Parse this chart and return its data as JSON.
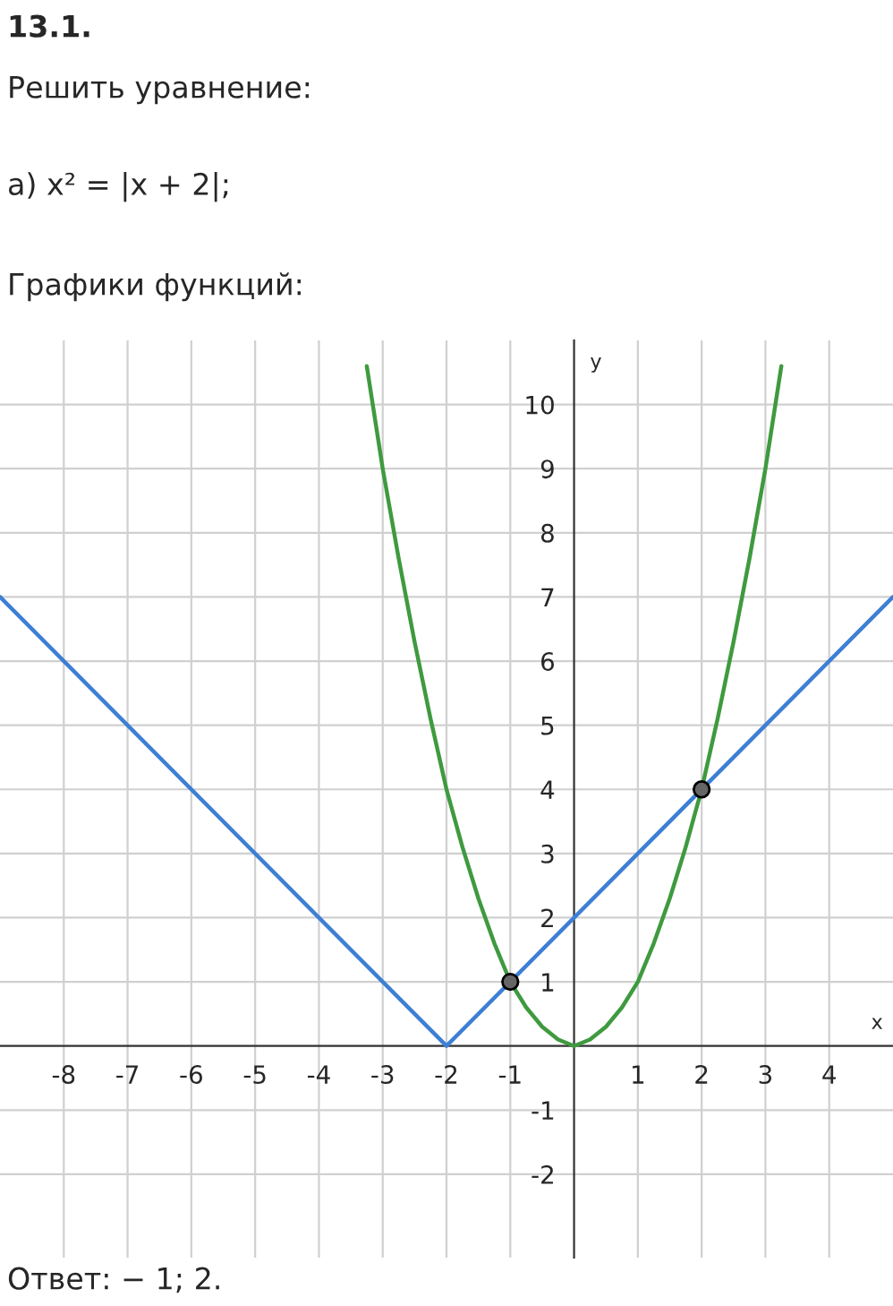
{
  "chart_data": {
    "type": "line",
    "title": "13.1.",
    "subtitle": "Решить уравнение:",
    "annotations": [
      "а) x² = |x + 2|;",
      "Графики функций:",
      "Ответ: − 1; 2."
    ],
    "xlabel": "x",
    "ylabel": "y",
    "series": [
      {
        "color": "#3d7fd4",
        "x": [
          -9,
          -2,
          5
        ],
        "values": [
          7,
          0,
          7
        ]
      },
      {
        "color": "#3f9a3f",
        "x": [
          -3.25,
          -3,
          -2.75,
          -2.5,
          -2.25,
          -2,
          -1.75,
          -1.5,
          -1.25,
          -1,
          -0.75,
          -0.5,
          -0.25,
          0,
          0.25,
          0.5,
          0.75,
          1,
          1.25,
          1.5,
          1.75,
          2,
          2.25,
          2.5,
          2.75,
          3,
          3.25
        ],
        "values": [
          10.6,
          9,
          7.6,
          6.3,
          5.1,
          4,
          3.1,
          2.3,
          1.6,
          1,
          0.6,
          0.3,
          0.1,
          0,
          0.1,
          0.3,
          0.6,
          1,
          1.6,
          2.3,
          3.1,
          4,
          5.1,
          6.3,
          7.6,
          9,
          10.6
        ]
      },
      {
        "type": "scatter",
        "color": "#666666",
        "marker": "circle",
        "x": [
          -1,
          2
        ],
        "values": [
          1,
          4
        ]
      }
    ],
    "xlim": [
      -9,
      5
    ],
    "ylim": [
      -3.3,
      11
    ],
    "xticks": [
      -8,
      -7,
      -6,
      -5,
      -4,
      -3,
      -2,
      -1,
      1,
      2,
      3,
      4
    ],
    "yticks": [
      -2,
      -1,
      1,
      2,
      3,
      4,
      5,
      6,
      7,
      8,
      9,
      10
    ],
    "grid": true,
    "legend": false
  }
}
